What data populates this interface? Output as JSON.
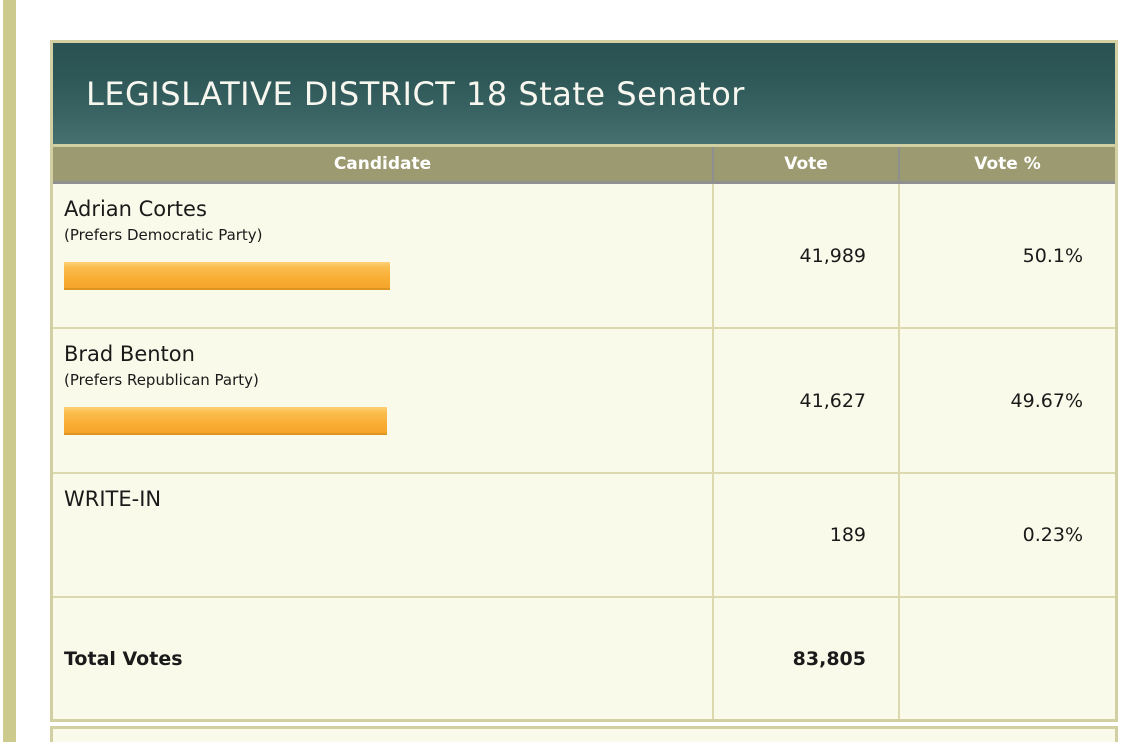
{
  "page": {
    "background_color": "#ffffff",
    "edge_stripe_color": "#cdca8e"
  },
  "contest": {
    "title": "LEGISLATIVE DISTRICT 18 State Senator",
    "columns": {
      "candidate": "Candidate",
      "vote": "Vote",
      "vote_pct": "Vote %"
    },
    "rows": [
      {
        "name": "Adrian Cortes",
        "party": "(Prefers Democratic Party)",
        "vote": "41,989",
        "pct_label": "50.1%",
        "pct": 50.1
      },
      {
        "name": "Brad Benton",
        "party": "(Prefers Republican Party)",
        "vote": "41,627",
        "pct_label": "49.67%",
        "pct": 49.67
      },
      {
        "name": "WRITE-IN",
        "party": "",
        "vote": "189",
        "pct_label": "0.23%",
        "pct": 0.23
      }
    ],
    "total": {
      "label": "Total Votes",
      "vote": "83,805",
      "pct_label": ""
    }
  },
  "colors": {
    "title_bar_gradient_top": "#2a5252",
    "title_bar_gradient_bottom": "#477171",
    "header_row_background": "#9c9a70",
    "header_border_gray": "#909090",
    "cell_background": "#fafaea",
    "cell_border_olive": "#dcd9ae",
    "table_outer_border": "#d2cfa2",
    "bar_orange_top": "#fdd078",
    "bar_orange_bottom": "#f6a52b",
    "bar_orange_edge": "#df9524"
  },
  "chart_data": {
    "type": "table",
    "title": "LEGISLATIVE DISTRICT 18 State Senator",
    "columns": [
      "Candidate",
      "Vote",
      "Vote %"
    ],
    "rows": [
      [
        "Adrian Cortes (Prefers Democratic Party)",
        41989,
        "50.1%"
      ],
      [
        "Brad Benton (Prefers Republican Party)",
        41627,
        "49.67%"
      ],
      [
        "WRITE-IN",
        189,
        "0.23%"
      ],
      [
        "Total Votes",
        83805,
        ""
      ]
    ],
    "embedded_bars": {
      "type": "bar",
      "orientation": "horizontal",
      "categories": [
        "Adrian Cortes",
        "Brad Benton",
        "WRITE-IN"
      ],
      "values_pct": [
        50.1,
        49.67,
        0.23
      ],
      "xlim": [
        0,
        100
      ]
    }
  }
}
